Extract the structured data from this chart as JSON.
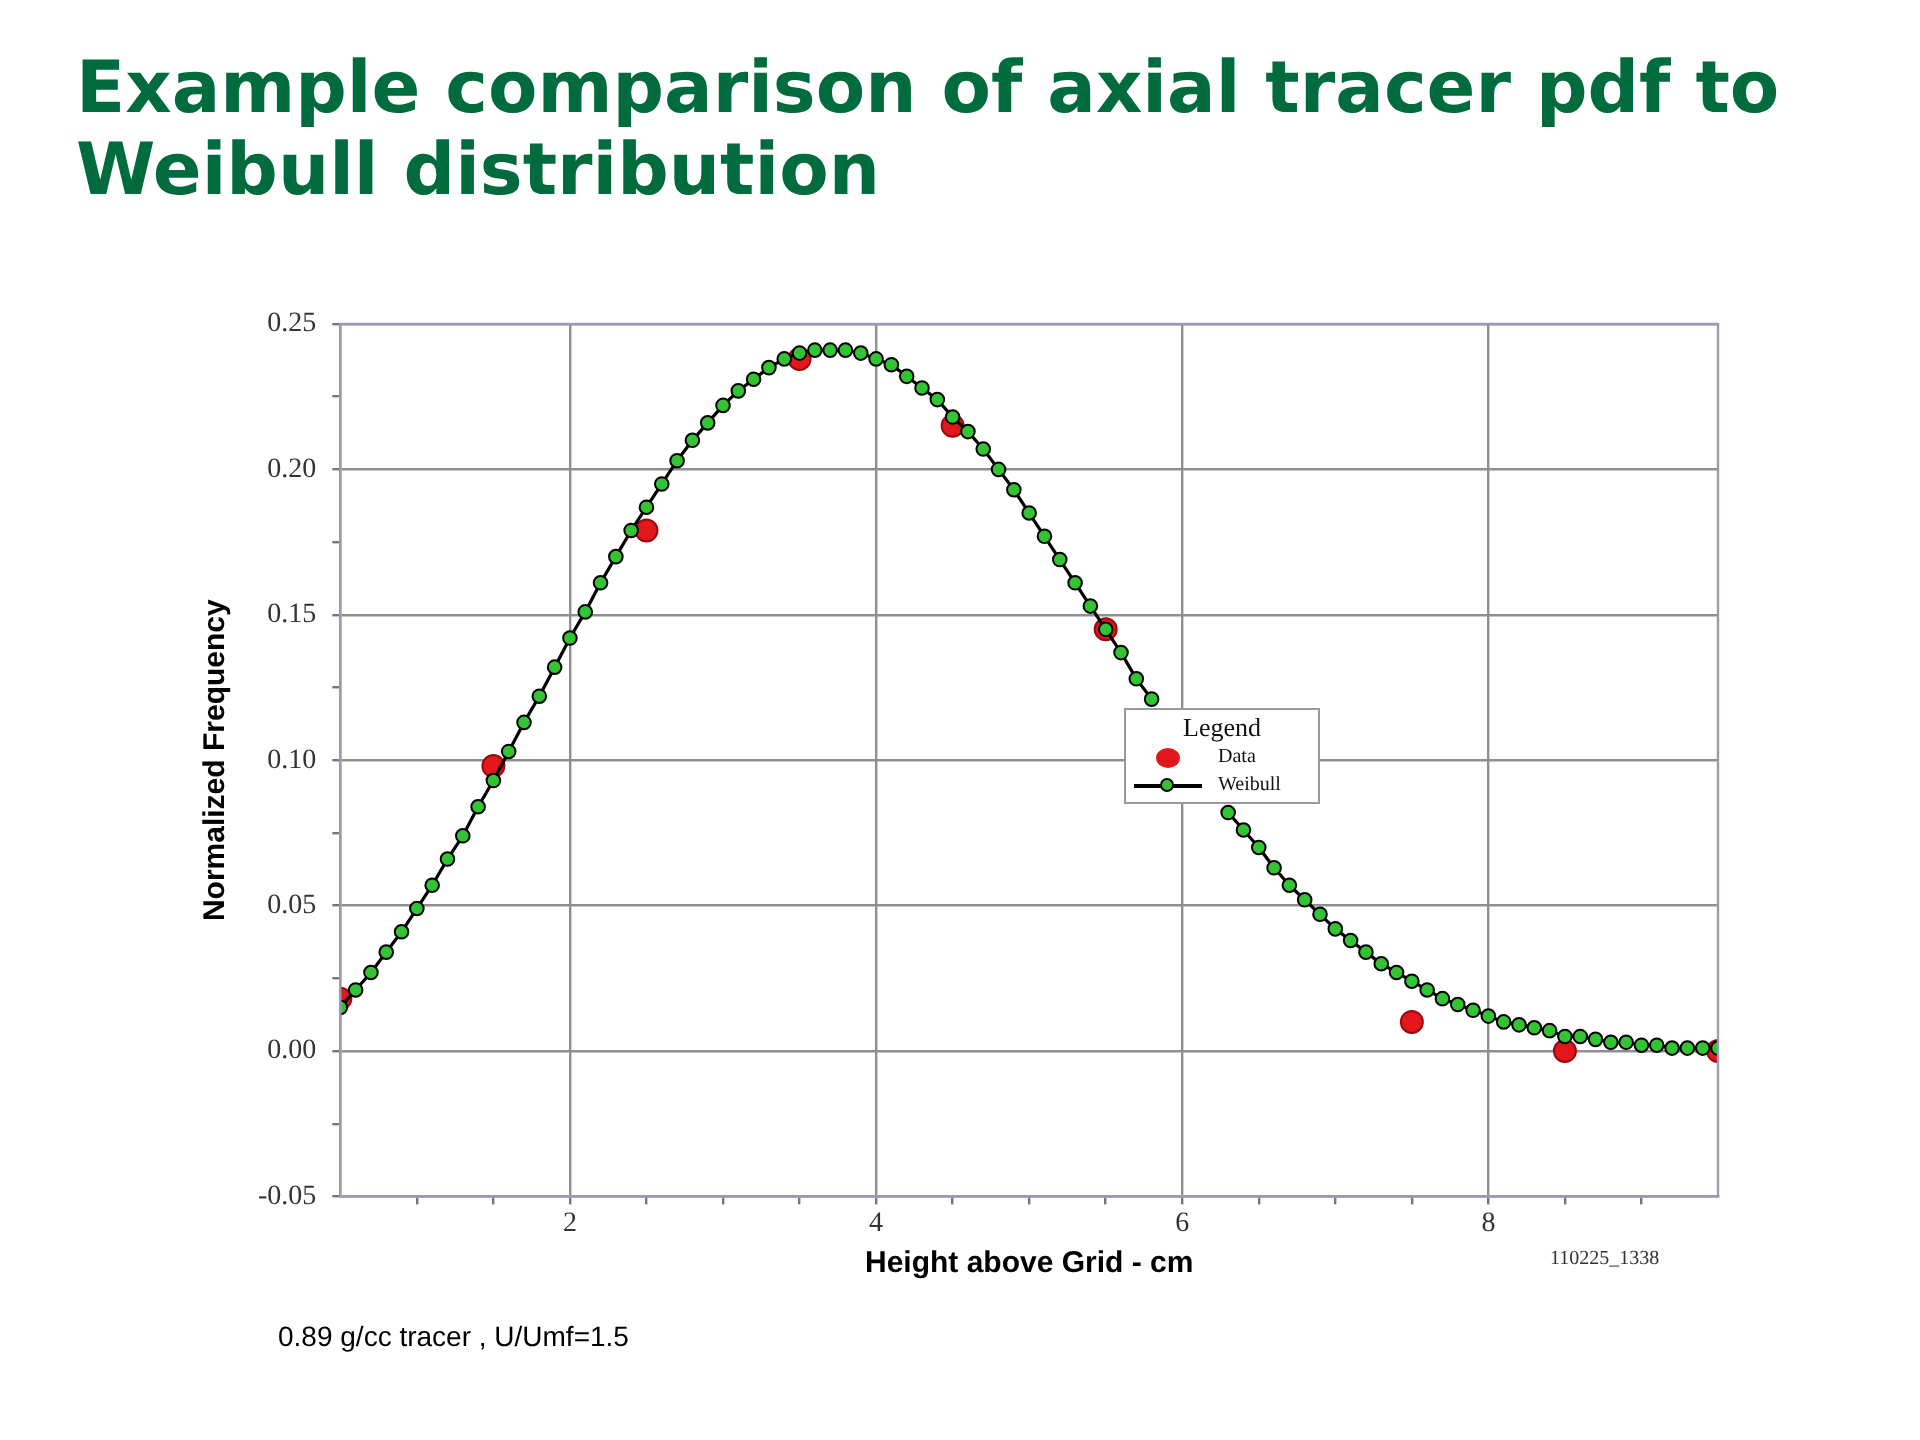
{
  "chart_data": {
    "type": "line",
    "title": "Example comparison of axial tracer pdf to Weibull distribution",
    "xlabel": "Height above Grid - cm",
    "ylabel": "Normalized Frequency",
    "legend_title": "Legend",
    "annotations": [
      "110225_1338",
      "0.89 g/cc tracer , U/Umf=1.5"
    ],
    "xlim": [
      0.5,
      9.5
    ],
    "ylim": [
      -0.05,
      0.25
    ],
    "xticks": [
      {
        "value": 1,
        "label": null
      },
      {
        "value": 1.5,
        "label": null
      },
      2,
      {
        "value": 2.5,
        "label": null
      },
      {
        "value": 3,
        "label": null
      },
      {
        "value": 3.5,
        "label": null
      },
      4,
      {
        "value": 4.5,
        "label": null
      },
      {
        "value": 5,
        "label": null
      },
      {
        "value": 5.5,
        "label": null
      },
      6,
      {
        "value": 6.5,
        "label": null
      },
      {
        "value": 7,
        "label": null
      },
      {
        "value": 7.5,
        "label": null
      },
      8,
      {
        "value": 8.5,
        "label": null
      },
      {
        "value": 9,
        "label": null
      }
    ],
    "yticks": [
      -0.05,
      {
        "value": -0.025,
        "label": null
      },
      {
        "value": 0,
        "label": "0.00"
      },
      {
        "value": 0.025,
        "label": null
      },
      0.05,
      {
        "value": 0.075,
        "label": null
      },
      {
        "value": 0.1,
        "label": "0.10"
      },
      {
        "value": 0.125,
        "label": null
      },
      0.15,
      {
        "value": 0.175,
        "label": null
      },
      {
        "value": 0.2,
        "label": "0.20"
      },
      {
        "value": 0.225,
        "label": null
      },
      0.25
    ],
    "grid": true,
    "legend": "right",
    "marker": "circle",
    "line_style": "solid",
    "series": [
      {
        "name": "Data",
        "type": "scatter",
        "color": "#e3161c",
        "x": [
          0.5,
          1.5,
          2.5,
          3.5,
          4.5,
          5.5,
          7.5,
          8.5,
          9.5
        ],
        "values": [
          0.018,
          0.098,
          0.179,
          0.238,
          0.215,
          0.145,
          0.01,
          0,
          0
        ]
      },
      {
        "name": "Weibull",
        "color": "#33c433",
        "x": [
          0.5,
          0.6,
          0.7,
          0.8,
          0.9,
          1.0,
          1.1,
          1.2,
          1.3,
          1.4,
          1.5,
          1.6,
          1.7,
          1.8,
          1.9,
          2.0,
          2.1,
          2.2,
          2.3,
          2.4,
          2.5,
          2.6,
          2.7,
          2.8,
          2.9,
          3.0,
          3.1,
          3.2,
          3.3,
          3.4,
          3.5,
          3.6,
          3.7,
          3.8,
          3.9,
          4.0,
          4.1,
          4.2,
          4.3,
          4.4,
          4.5,
          4.6,
          4.7,
          4.8,
          4.9,
          5.0,
          5.1,
          5.2,
          5.3,
          5.4,
          5.5,
          5.6,
          5.7,
          5.8,
          5.9,
          6.0,
          6.1,
          6.2,
          6.3,
          6.4,
          6.5,
          6.6,
          6.7,
          6.8,
          6.9,
          7.0,
          7.1,
          7.2,
          7.3,
          7.4,
          7.5,
          7.6,
          7.7,
          7.8,
          7.9,
          8.0,
          8.1,
          8.2,
          8.3,
          8.4,
          8.5,
          8.6,
          8.7,
          8.8,
          8.9,
          9.0,
          9.1,
          9.2,
          9.3,
          9.4,
          9.5
        ],
        "values": [
          0.015,
          0.021,
          0.027,
          0.034,
          0.041,
          0.049,
          0.057,
          0.066,
          0.074,
          0.084,
          0.093,
          0.103,
          0.113,
          0.122,
          0.132,
          0.142,
          0.151,
          0.161,
          0.17,
          0.179,
          0.187,
          0.195,
          0.203,
          0.21,
          0.216,
          0.222,
          0.227,
          0.231,
          0.235,
          0.238,
          0.24,
          0.241,
          0.241,
          0.241,
          0.24,
          0.238,
          0.236,
          0.232,
          0.228,
          0.224,
          0.218,
          0.213,
          0.207,
          0.2,
          0.193,
          0.185,
          0.177,
          0.169,
          0.161,
          0.153,
          0.145,
          0.137,
          0.128,
          0.121,
          null,
          null,
          null,
          null,
          0.082,
          0.076,
          0.07,
          0.063,
          0.057,
          0.052,
          0.047,
          0.042,
          0.038,
          0.034,
          0.03,
          0.027,
          0.024,
          0.021,
          0.018,
          0.016,
          0.014,
          0.012,
          0.01,
          0.009,
          0.008,
          0.007,
          0.005,
          0.005,
          0.004,
          0.003,
          0.003,
          0.002,
          0.002,
          0.001,
          0.001,
          0.001,
          0.001
        ]
      }
    ]
  }
}
